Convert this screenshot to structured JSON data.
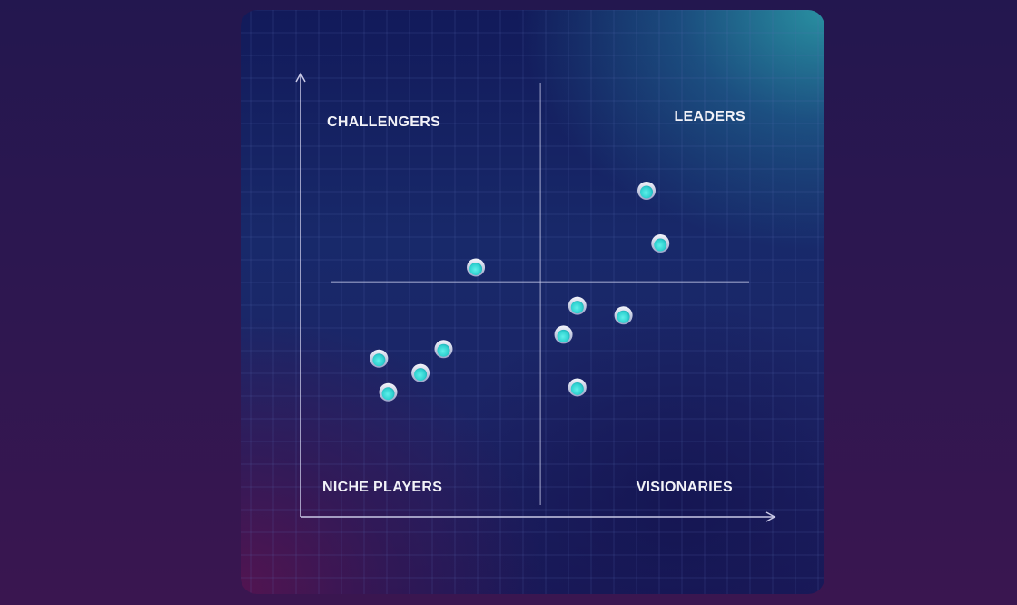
{
  "chart_data": {
    "type": "scatter",
    "title": "",
    "xlabel": "",
    "ylabel": "",
    "xlim": [
      0,
      100
    ],
    "ylim": [
      0,
      100
    ],
    "grid": true,
    "quadrant_divider": {
      "x": 52,
      "y": 49
    },
    "quadrants": {
      "top_left": "CHALLENGERS",
      "top_right": "LEADERS",
      "bottom_left": "NICHE PLAYERS",
      "bottom_right": "VISIONARIES"
    },
    "points": [
      {
        "x": 38,
        "y": 52
      },
      {
        "x": 75,
        "y": 68
      },
      {
        "x": 78,
        "y": 57
      },
      {
        "x": 60,
        "y": 44
      },
      {
        "x": 70,
        "y": 42
      },
      {
        "x": 57,
        "y": 38
      },
      {
        "x": 60,
        "y": 27
      },
      {
        "x": 17,
        "y": 33
      },
      {
        "x": 31,
        "y": 35
      },
      {
        "x": 26,
        "y": 30
      },
      {
        "x": 19,
        "y": 26
      }
    ],
    "colors": {
      "point_fill": "#2fd1d0",
      "point_ring": "#dfe6f4",
      "axis": "#c9c9e6",
      "grid": "#5d6fb4"
    }
  }
}
